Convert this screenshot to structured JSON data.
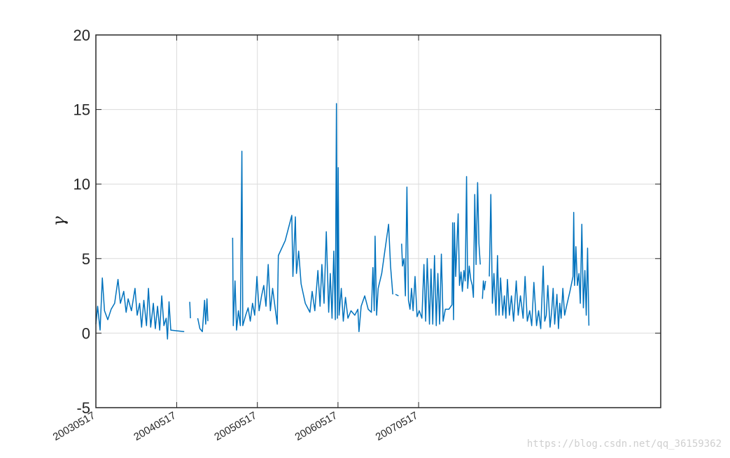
{
  "chart_data": {
    "type": "line",
    "title": "",
    "xlabel": "",
    "ylabel": "γ",
    "ylim": [
      -5,
      20
    ],
    "yticks": [
      "-5",
      "0",
      "5",
      "10",
      "15",
      "20"
    ],
    "xlim": [
      "2003-05-17",
      "2010-05-17"
    ],
    "xtick_labels": [
      "20030517",
      "20040517",
      "20050517",
      "20060517",
      "20070517"
    ],
    "grid": true,
    "series": [
      {
        "color": "#0072BD",
        "segments": [
          [
            [
              "2003-05-17",
              0.6
            ],
            [
              "2003-05-25",
              1.8
            ],
            [
              "2003-06-05",
              0.2
            ],
            [
              "2003-06-15",
              3.7
            ],
            [
              "2003-06-25",
              1.5
            ],
            [
              "2003-07-10",
              0.9
            ],
            [
              "2003-07-25",
              1.6
            ],
            [
              "2003-08-10",
              2.0
            ],
            [
              "2003-08-25",
              3.6
            ],
            [
              "2003-09-05",
              2.0
            ],
            [
              "2003-09-20",
              2.8
            ],
            [
              "2003-10-01",
              1.4
            ],
            [
              "2003-10-10",
              2.3
            ],
            [
              "2003-10-25",
              1.5
            ],
            [
              "2003-11-10",
              3.0
            ],
            [
              "2003-11-20",
              1.2
            ],
            [
              "2003-12-01",
              2.0
            ],
            [
              "2003-12-10",
              0.4
            ],
            [
              "2003-12-20",
              2.2
            ],
            [
              "2004-01-01",
              0.5
            ],
            [
              "2004-01-10",
              3.0
            ],
            [
              "2004-01-20",
              0.4
            ],
            [
              "2004-02-01",
              2.0
            ],
            [
              "2004-02-10",
              0.3
            ],
            [
              "2004-02-20",
              1.8
            ],
            [
              "2004-03-01",
              0.2
            ],
            [
              "2004-03-10",
              2.5
            ],
            [
              "2004-03-20",
              0.5
            ],
            [
              "2004-03-30",
              1.0
            ],
            [
              "2004-04-05",
              -0.4
            ],
            [
              "2004-04-12",
              2.1
            ],
            [
              "2004-04-20",
              0.2
            ],
            [
              "2004-06-20",
              0.1
            ]
          ],
          [
            [
              "2004-07-15",
              2.1
            ],
            [
              "2004-07-18",
              1.0
            ]
          ],
          [
            [
              "2004-08-20",
              1.0
            ],
            [
              "2004-08-30",
              0.3
            ],
            [
              "2004-09-10",
              0.1
            ],
            [
              "2004-09-20",
              2.2
            ],
            [
              "2004-09-25",
              0.6
            ],
            [
              "2004-10-01",
              2.3
            ],
            [
              "2004-10-05",
              0.8
            ]
          ],
          [
            [
              "2005-01-25",
              6.4
            ],
            [
              "2005-01-28",
              0.5
            ],
            [
              "2005-02-05",
              3.5
            ],
            [
              "2005-02-12",
              0.2
            ],
            [
              "2005-02-20",
              1.5
            ],
            [
              "2005-03-01",
              0.5
            ],
            [
              "2005-03-08",
              12.2
            ],
            [
              "2005-03-12",
              0.5
            ],
            [
              "2005-03-25",
              1.2
            ],
            [
              "2005-04-05",
              1.7
            ],
            [
              "2005-04-15",
              0.8
            ],
            [
              "2005-04-25",
              2.0
            ],
            [
              "2005-05-05",
              1.2
            ],
            [
              "2005-05-15",
              3.8
            ],
            [
              "2005-05-25",
              1.5
            ],
            [
              "2005-06-05",
              2.5
            ],
            [
              "2005-06-15",
              3.2
            ],
            [
              "2005-06-25",
              1.8
            ],
            [
              "2005-07-05",
              4.6
            ],
            [
              "2005-07-15",
              1.5
            ],
            [
              "2005-07-25",
              3.0
            ],
            [
              "2005-08-15",
              0.6
            ],
            [
              "2005-08-20",
              5.2
            ],
            [
              "2005-09-20",
              6.2
            ],
            [
              "2005-10-20",
              7.9
            ],
            [
              "2005-10-25",
              3.8
            ],
            [
              "2005-11-05",
              7.8
            ],
            [
              "2005-11-10",
              4.0
            ],
            [
              "2005-11-20",
              5.5
            ],
            [
              "2005-12-01",
              3.3
            ],
            [
              "2005-12-20",
              2.0
            ],
            [
              "2006-01-10",
              1.4
            ],
            [
              "2006-01-20",
              2.8
            ],
            [
              "2006-02-01",
              1.5
            ],
            [
              "2006-02-15",
              4.2
            ],
            [
              "2006-02-25",
              1.8
            ],
            [
              "2006-03-05",
              4.6
            ],
            [
              "2006-03-15",
              2.0
            ],
            [
              "2006-03-25",
              6.8
            ],
            [
              "2006-04-05",
              1.4
            ],
            [
              "2006-04-12",
              4.0
            ],
            [
              "2006-04-20",
              1.0
            ],
            [
              "2006-04-28",
              5.5
            ],
            [
              "2006-05-05",
              0.9
            ],
            [
              "2006-05-10",
              15.4
            ],
            [
              "2006-05-14",
              1.0
            ],
            [
              "2006-05-18",
              11.1
            ],
            [
              "2006-05-22",
              1.2
            ],
            [
              "2006-06-01",
              3.0
            ],
            [
              "2006-06-10",
              0.8
            ],
            [
              "2006-06-20",
              2.4
            ],
            [
              "2006-07-01",
              1.0
            ],
            [
              "2006-07-15",
              1.5
            ],
            [
              "2006-08-01",
              1.2
            ],
            [
              "2006-08-15",
              1.6
            ],
            [
              "2006-08-20",
              0.1
            ],
            [
              "2006-08-30",
              1.8
            ],
            [
              "2006-09-15",
              2.5
            ],
            [
              "2006-10-01",
              1.6
            ],
            [
              "2006-10-15",
              1.4
            ],
            [
              "2006-10-22",
              4.4
            ],
            [
              "2006-10-28",
              1.5
            ],
            [
              "2006-11-01",
              6.5
            ],
            [
              "2006-11-08",
              1.2
            ],
            [
              "2006-11-15",
              3.0
            ],
            [
              "2006-12-01",
              4.0
            ],
            [
              "2006-12-15",
              5.5
            ],
            [
              "2007-01-01",
              7.3
            ],
            [
              "2007-01-10",
              4.5
            ],
            [
              "2007-01-20",
              2.6
            ]
          ],
          [
            [
              "2007-02-01",
              2.6
            ],
            [
              "2007-02-15",
              2.5
            ]
          ],
          [
            [
              "2007-03-01",
              6.0
            ],
            [
              "2007-03-05",
              4.5
            ],
            [
              "2007-03-12",
              5.0
            ],
            [
              "2007-03-18",
              2.5
            ],
            [
              "2007-03-25",
              9.8
            ],
            [
              "2007-04-01",
              2.2
            ],
            [
              "2007-04-08",
              1.6
            ],
            [
              "2007-04-15",
              3.0
            ],
            [
              "2007-04-22",
              1.5
            ],
            [
              "2007-05-01",
              3.8
            ],
            [
              "2007-05-10",
              1.1
            ],
            [
              "2007-05-20",
              1.5
            ],
            [
              "2007-06-01",
              1.0
            ],
            [
              "2007-06-10",
              4.6
            ],
            [
              "2007-06-18",
              0.8
            ],
            [
              "2007-06-25",
              5.0
            ],
            [
              "2007-07-05",
              0.6
            ],
            [
              "2007-07-12",
              4.3
            ],
            [
              "2007-07-20",
              0.6
            ],
            [
              "2007-07-28",
              5.2
            ],
            [
              "2007-08-05",
              0.5
            ],
            [
              "2007-08-12",
              4.0
            ],
            [
              "2007-08-20",
              0.6
            ],
            [
              "2007-08-28",
              5.3
            ],
            [
              "2007-09-05",
              0.8
            ],
            [
              "2007-09-15",
              1.6
            ],
            [
              "2007-10-01",
              1.6
            ],
            [
              "2007-10-15",
              1.9
            ],
            [
              "2007-10-18",
              7.4
            ],
            [
              "2007-10-22",
              0.9
            ],
            [
              "2007-10-26",
              7.4
            ],
            [
              "2007-11-01",
              3.8
            ],
            [
              "2007-11-08",
              6.5
            ],
            [
              "2007-11-12",
              8.0
            ],
            [
              "2007-11-18",
              3.2
            ],
            [
              "2007-11-25",
              4.1
            ],
            [
              "2007-12-01",
              2.8
            ],
            [
              "2007-12-08",
              4.2
            ],
            [
              "2007-12-14",
              3.5
            ],
            [
              "2007-12-20",
              10.5
            ],
            [
              "2007-12-25",
              3.0
            ],
            [
              "2008-01-01",
              4.5
            ],
            [
              "2008-01-08",
              3.6
            ],
            [
              "2008-01-15",
              3.2
            ],
            [
              "2008-01-20",
              2.4
            ],
            [
              "2008-01-26",
              9.3
            ],
            [
              "2008-02-01",
              4.6
            ],
            [
              "2008-02-08",
              10.1
            ],
            [
              "2008-02-14",
              6.0
            ],
            [
              "2008-02-20",
              4.6
            ]
          ],
          [
            [
              "2008-03-01",
              2.3
            ],
            [
              "2008-03-05",
              3.5
            ],
            [
              "2008-03-10",
              2.9
            ],
            [
              "2008-03-15",
              3.5
            ]
          ],
          [
            [
              "2008-04-01",
              3.8
            ],
            [
              "2008-04-08",
              9.3
            ],
            [
              "2008-04-15",
              2.0
            ],
            [
              "2008-04-22",
              4.0
            ],
            [
              "2008-05-01",
              1.2
            ],
            [
              "2008-05-08",
              5.2
            ],
            [
              "2008-05-15",
              1.2
            ],
            [
              "2008-05-22",
              3.7
            ],
            [
              "2008-06-01",
              1.2
            ],
            [
              "2008-06-08",
              2.5
            ],
            [
              "2008-06-15",
              1.0
            ],
            [
              "2008-06-22",
              3.6
            ],
            [
              "2008-07-01",
              1.2
            ],
            [
              "2008-07-10",
              2.5
            ],
            [
              "2008-07-20",
              0.8
            ],
            [
              "2008-08-01",
              3.5
            ],
            [
              "2008-08-10",
              1.2
            ],
            [
              "2008-08-20",
              2.5
            ],
            [
              "2008-09-01",
              1.0
            ],
            [
              "2008-09-10",
              3.8
            ],
            [
              "2008-09-20",
              0.8
            ],
            [
              "2008-10-01",
              1.5
            ],
            [
              "2008-10-10",
              0.5
            ],
            [
              "2008-10-20",
              3.4
            ],
            [
              "2008-11-01",
              0.5
            ],
            [
              "2008-11-10",
              1.5
            ],
            [
              "2008-11-20",
              0.3
            ],
            [
              "2008-12-01",
              4.5
            ],
            [
              "2008-12-08",
              0.8
            ],
            [
              "2008-12-15",
              1.2
            ],
            [
              "2008-12-22",
              3.2
            ],
            [
              "2009-01-01",
              0.4
            ],
            [
              "2009-01-08",
              1.4
            ],
            [
              "2009-01-15",
              3.0
            ],
            [
              "2009-01-22",
              0.6
            ],
            [
              "2009-02-01",
              2.6
            ],
            [
              "2009-02-08",
              0.3
            ],
            [
              "2009-02-14",
              2.0
            ],
            [
              "2009-02-20",
              1.0
            ],
            [
              "2009-02-28",
              3.0
            ],
            [
              "2009-03-08",
              1.2
            ],
            [
              "2009-03-18",
              1.9
            ],
            [
              "2009-04-01",
              2.8
            ],
            [
              "2009-04-15",
              3.8
            ],
            [
              "2009-04-18",
              8.1
            ],
            [
              "2009-04-22",
              3.2
            ],
            [
              "2009-04-28",
              5.8
            ],
            [
              "2009-05-05",
              3.2
            ],
            [
              "2009-05-12",
              4.0
            ],
            [
              "2009-05-18",
              2.0
            ],
            [
              "2009-05-25",
              7.3
            ],
            [
              "2009-06-01",
              1.7
            ],
            [
              "2009-06-08",
              4.2
            ],
            [
              "2009-06-14",
              1.2
            ],
            [
              "2009-06-20",
              5.7
            ],
            [
              "2009-06-26",
              0.5
            ]
          ]
        ]
      }
    ]
  },
  "watermark": "https://blog.csdn.net/qq_36159362"
}
